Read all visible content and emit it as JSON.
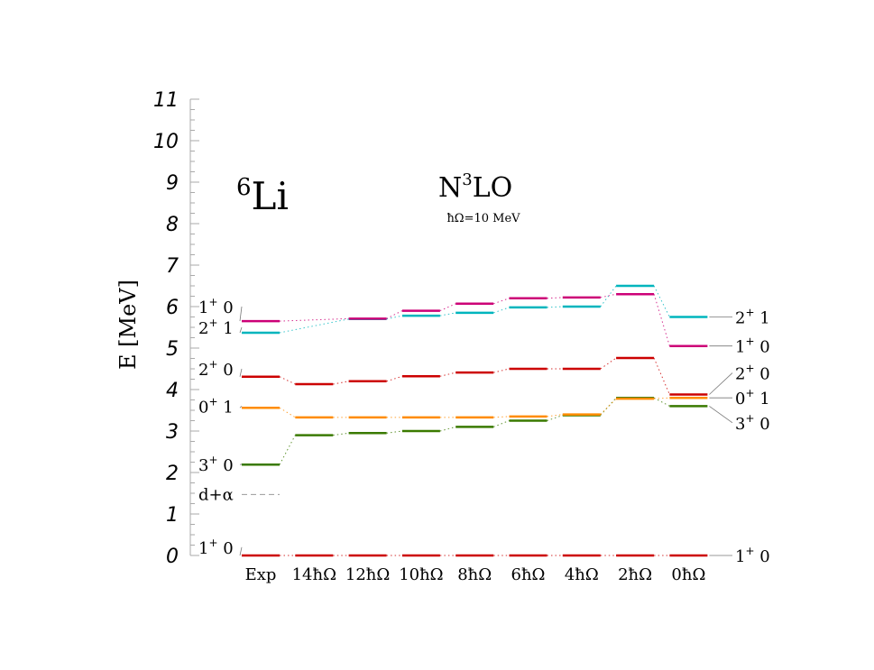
{
  "chart_data": {
    "type": "level-scheme",
    "nucleus": {
      "mass": "6",
      "symbol": "Li"
    },
    "method": {
      "base": "N",
      "power": "3",
      "suffix": "LO"
    },
    "subtitle": "ħΩ=10 MeV",
    "ylabel": "E [MeV]",
    "ylim": [
      0,
      11
    ],
    "yticks": [
      "0",
      "1",
      "2",
      "3",
      "4",
      "5",
      "6",
      "7",
      "8",
      "9",
      "10",
      "11"
    ],
    "categories": [
      "Exp",
      "14ħΩ",
      "12ħΩ",
      "10ħΩ",
      "8ħΩ",
      "6ħΩ",
      "4ħΩ",
      "2ħΩ",
      "0ħΩ"
    ],
    "series": [
      {
        "name": "1+ 0 (g.s.)",
        "color": "#cc0000",
        "values": [
          0,
          0,
          0,
          0,
          0,
          0,
          0,
          0,
          0
        ]
      },
      {
        "name": "3+ 0",
        "color": "#3a7a00",
        "values": [
          2.19,
          2.9,
          2.95,
          3.0,
          3.1,
          3.25,
          3.38,
          3.8,
          3.6
        ]
      },
      {
        "name": "0+ 1",
        "color": "#ff8c00",
        "values": [
          3.56,
          3.33,
          3.33,
          3.33,
          3.33,
          3.35,
          3.4,
          3.78,
          3.8
        ]
      },
      {
        "name": "2+ 0",
        "color": "#cc0000",
        "values": [
          4.31,
          4.13,
          4.2,
          4.32,
          4.41,
          4.5,
          4.5,
          4.76,
          3.88
        ]
      },
      {
        "name": "2+ 1",
        "color": "#00b5bd",
        "values": [
          5.37,
          null,
          5.7,
          5.78,
          5.85,
          5.98,
          6.0,
          6.5,
          5.75
        ]
      },
      {
        "name": "1+ 0",
        "color": "#cc0077",
        "values": [
          5.65,
          null,
          5.71,
          5.9,
          6.07,
          6.2,
          6.22,
          6.3,
          5.05
        ]
      }
    ],
    "threshold": {
      "label": "d+α",
      "value": 1.47,
      "color": "#999999"
    },
    "left_labels": [
      {
        "j": "1",
        "t": "0",
        "value": 0,
        "pos": 0.2
      },
      {
        "j": "3",
        "t": "0",
        "value": 2.19,
        "pos": 2.2
      },
      {
        "j": "0",
        "t": "1",
        "value": 3.56,
        "pos": 3.6
      },
      {
        "j": "2",
        "t": "0",
        "value": 4.31,
        "pos": 4.5
      },
      {
        "j": "2",
        "t": "1",
        "value": 5.37,
        "pos": 5.5
      },
      {
        "j": "1",
        "t": "0",
        "value": 5.65,
        "pos": 6.0
      }
    ],
    "right_labels": [
      {
        "j": "1",
        "t": "0",
        "value": 0,
        "pos": 0
      },
      {
        "j": "3",
        "t": "0",
        "value": 3.6,
        "pos": 3.2
      },
      {
        "j": "0",
        "t": "1",
        "value": 3.8,
        "pos": 3.8
      },
      {
        "j": "2",
        "t": "0",
        "value": 3.88,
        "pos": 4.4
      },
      {
        "j": "1",
        "t": "0",
        "value": 5.05,
        "pos": 5.05
      },
      {
        "j": "2",
        "t": "1",
        "value": 5.75,
        "pos": 5.75
      }
    ],
    "grid": false
  }
}
